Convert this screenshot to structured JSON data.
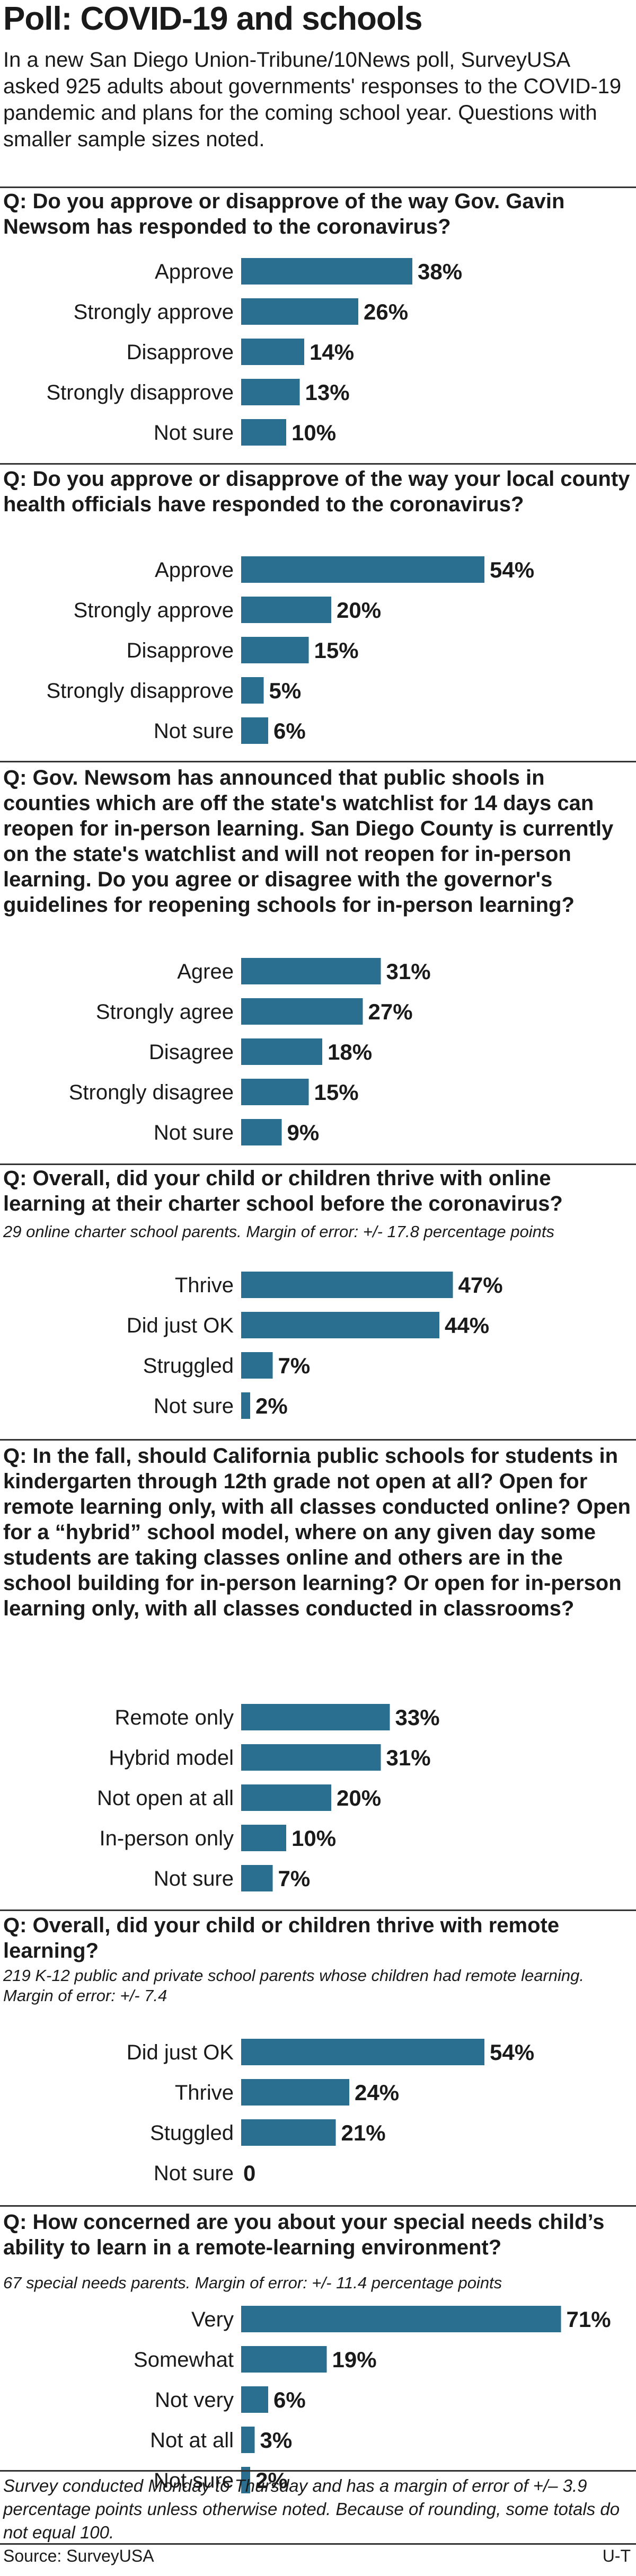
{
  "title": "Poll: COVID-19 and schools",
  "intro": "In a new San Diego Union-Tribune/10News poll, SurveyUSA asked 925 adults about governments' responses to the COVID-19 pandemic and plans for the coming school year. Questions with smaller sample sizes noted.",
  "bar_color": "#2a6f8f",
  "chart_data": [
    {
      "type": "bar",
      "title": "Q: Do you approve or disapprove of the way Gov. Gavin Newsom has responded to the coronavirus?",
      "note": "",
      "categories": [
        "Approve",
        "Strongly approve",
        "Disapprove",
        "Strongly disapprove",
        "Not sure"
      ],
      "values": [
        38,
        26,
        14,
        13,
        10
      ],
      "value_labels": [
        "38%",
        "26%",
        "14%",
        "13%",
        "10%"
      ]
    },
    {
      "type": "bar",
      "title": "Q: Do you approve or disapprove of the way your local county health officials have responded to the coronavirus?",
      "note": "",
      "categories": [
        "Approve",
        "Strongly approve",
        "Disapprove",
        "Strongly disapprove",
        "Not sure"
      ],
      "values": [
        54,
        20,
        15,
        5,
        6
      ],
      "value_labels": [
        "54%",
        "20%",
        "15%",
        "5%",
        "6%"
      ]
    },
    {
      "type": "bar",
      "title": "Q: Gov. Newsom has announced that public shools in counties which are off the state's watchlist for 14 days can reopen for in-person learning. San Diego County is currently on the state's watchlist and will not reopen for in-person learning. Do you agree or disagree with the governor's guidelines for reopening schools for in-person learning?",
      "note": "",
      "categories": [
        "Agree",
        "Strongly agree",
        "Disagree",
        "Strongly disagree",
        "Not sure"
      ],
      "values": [
        31,
        27,
        18,
        15,
        9
      ],
      "value_labels": [
        "31%",
        "27%",
        "18%",
        "15%",
        "9%"
      ]
    },
    {
      "type": "bar",
      "title": "Q: Overall, did your child or children thrive with online learning at their charter school before the coronavirus?",
      "note": "29 online charter school parents. Margin of error: +/- 17.8 percentage points",
      "categories": [
        "Thrive",
        "Did just OK",
        "Struggled",
        "Not sure"
      ],
      "values": [
        47,
        44,
        7,
        2
      ],
      "value_labels": [
        "47%",
        "44%",
        "7%",
        "2%"
      ]
    },
    {
      "type": "bar",
      "title": "Q: In the fall, should California public schools for students in kindergarten through 12th grade not open at all? Open for remote learning only, with all classes conducted online? Open for a “hybrid” school model, where on any given day some students are taking classes online and others are in the school building for in-person learning? Or open for in-person learning only, with all classes conducted in classrooms?",
      "note": "",
      "categories": [
        "Remote only",
        "Hybrid model",
        "Not open at all",
        "In-person only",
        "Not sure"
      ],
      "values": [
        33,
        31,
        20,
        10,
        7
      ],
      "value_labels": [
        "33%",
        "31%",
        "20%",
        "10%",
        "7%"
      ]
    },
    {
      "type": "bar",
      "title": "Q: Overall, did your child or children thrive with remote learning?",
      "note": "219 K-12 public and private school parents whose children had remote learning. Margin of error: +/- 7.4",
      "categories": [
        "Did just OK",
        "Thrive",
        "Stuggled",
        "Not sure"
      ],
      "values": [
        54,
        24,
        21,
        0
      ],
      "value_labels": [
        "54%",
        "24%",
        "21%",
        "0"
      ]
    },
    {
      "type": "bar",
      "title": "Q: How concerned are you about your special needs child’s ability to learn in a remote-learning environment?",
      "note": "67 special needs parents. Margin of error: +/- 11.4 percentage points",
      "categories": [
        "Very",
        "Somewhat",
        "Not very",
        "Not at all",
        "Not sure"
      ],
      "values": [
        71,
        19,
        6,
        3,
        2
      ],
      "value_labels": [
        "71%",
        "19%",
        "6%",
        "3%",
        "2%"
      ]
    }
  ],
  "footnote": "Survey conducted Monday to Thursday and has a margin of error of +/– 3.9 percentage points unless otherwise noted. Because of rounding, some totals do not equal 100.",
  "source": "Source: SurveyUSA",
  "credit": "U-T"
}
